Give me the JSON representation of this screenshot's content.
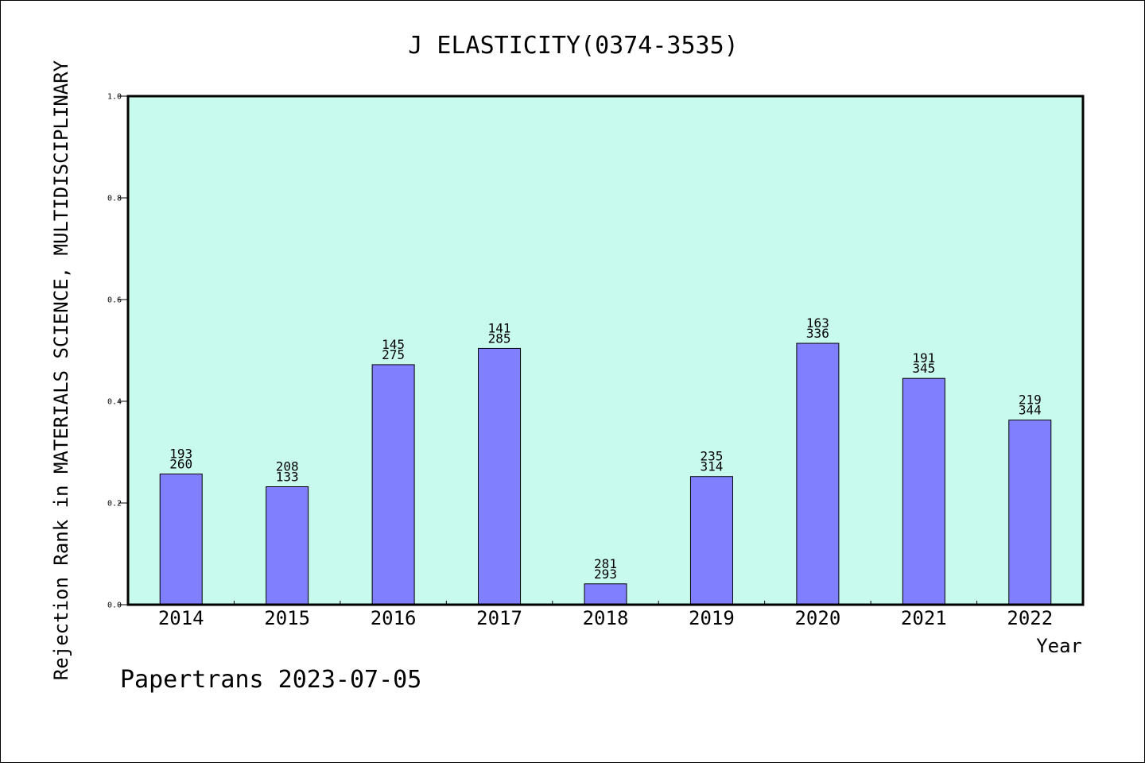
{
  "chart_data": {
    "type": "bar",
    "title": "J ELASTICITY(0374-3535)",
    "xlabel": "Year",
    "ylabel": "Rejection Rank in MATERIALS SCIENCE, MULTIDISCIPLINARY",
    "ylim": [
      0,
      1.0
    ],
    "yticks": [
      "0.0",
      "0.2",
      "0.4",
      "0.6",
      "0.8",
      "1.0"
    ],
    "grid": false,
    "categories": [
      "2014",
      "2015",
      "2016",
      "2017",
      "2018",
      "2019",
      "2020",
      "2021",
      "2022"
    ],
    "values": [
      0.257,
      0.232,
      0.472,
      0.504,
      0.041,
      0.252,
      0.514,
      0.445,
      0.363
    ],
    "labels_top": [
      "193",
      "208",
      "145",
      "141",
      "281",
      "235",
      "163",
      "191",
      "219"
    ],
    "labels_bottom": [
      "260",
      "133",
      "275",
      "285",
      "293",
      "314",
      "336",
      "345",
      "344"
    ],
    "colors": {
      "plot_bg": "#c8fbee",
      "bar": "#8080ff"
    }
  },
  "footer": "Papertrans 2023-07-05"
}
